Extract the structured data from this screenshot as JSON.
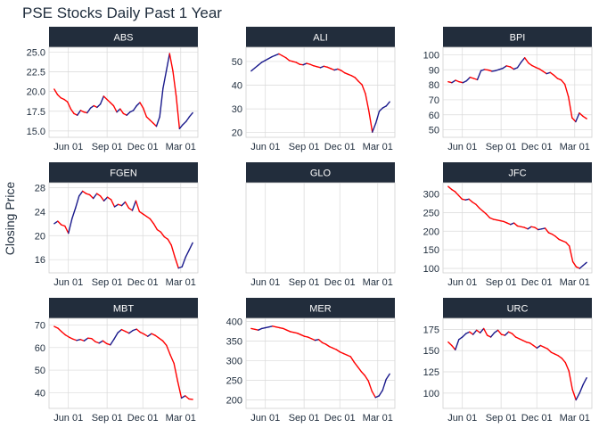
{
  "chart_data": {
    "type": "line",
    "title": "PSE Stocks Daily Past 1 Year",
    "xlabel": "",
    "ylabel": "Closing Price",
    "x_tick_labels": [
      "Jun 01",
      "Sep 01",
      "Dec 01",
      "Mar 01"
    ],
    "x_range_months": [
      "Apr 2019",
      "Apr 2020"
    ],
    "colors": {
      "up": "#1a1a8c",
      "down": "#ff0000",
      "strip": "#222d3c",
      "grid": "#d9d9d9"
    },
    "panels": [
      {
        "name": "ABS",
        "ylim": [
          14.2,
          25.6
        ],
        "yticks": [
          "25.0",
          "22.5",
          "20.0",
          "17.5",
          "15.0"
        ],
        "ytick_values": [
          25.0,
          22.5,
          20.0,
          17.5,
          15.0
        ],
        "values": [
          20.3,
          19.6,
          19.2,
          19.0,
          18.7,
          17.8,
          17.2,
          17.0,
          17.6,
          17.4,
          17.3,
          17.9,
          18.2,
          18.0,
          18.4,
          19.4,
          19.0,
          18.6,
          18.2,
          17.4,
          17.8,
          17.2,
          17.0,
          17.4,
          17.6,
          18.2,
          18.6,
          17.9,
          16.8,
          16.4,
          16.0,
          15.6,
          16.8,
          20.4,
          22.6,
          24.8,
          22.6,
          19.4,
          15.3,
          15.8,
          16.2,
          16.8,
          17.3
        ]
      },
      {
        "name": "ALI",
        "ylim": [
          18,
          56
        ],
        "yticks": [
          "50",
          "40",
          "30",
          "20"
        ],
        "ytick_values": [
          50,
          40,
          30,
          20
        ],
        "values": [
          46.0,
          47.2,
          48.4,
          49.6,
          50.4,
          51.2,
          52.0,
          52.6,
          53.2,
          52.4,
          51.6,
          50.4,
          50.0,
          49.6,
          48.8,
          48.6,
          49.2,
          48.8,
          48.2,
          47.8,
          47.4,
          48.0,
          47.6,
          47.0,
          46.4,
          46.8,
          46.2,
          45.2,
          44.6,
          44.0,
          43.2,
          41.6,
          40.2,
          36.4,
          29.0,
          20.2,
          24.0,
          29.0,
          30.4,
          31.2,
          33.0
        ]
      },
      {
        "name": "BPI",
        "ylim": [
          45,
          105
        ],
        "yticks": [
          "100",
          "90",
          "80",
          "70",
          "60",
          "50"
        ],
        "ytick_values": [
          100,
          90,
          80,
          70,
          60,
          50
        ],
        "values": [
          82.0,
          81.4,
          83.0,
          82.0,
          81.4,
          82.6,
          85.0,
          84.2,
          83.4,
          89.4,
          90.2,
          89.8,
          89.0,
          89.4,
          90.2,
          91.0,
          92.6,
          92.0,
          90.4,
          91.4,
          95.0,
          98.0,
          94.6,
          92.8,
          91.6,
          90.6,
          89.0,
          87.4,
          88.2,
          86.4,
          84.2,
          83.2,
          80.4,
          72.0,
          58.0,
          55.4,
          61.2,
          59.0,
          57.4
        ]
      },
      {
        "name": "FGEN",
        "ylim": [
          13.8,
          28.8
        ],
        "yticks": [
          "28",
          "24",
          "20",
          "16"
        ],
        "ytick_values": [
          28,
          24,
          20,
          16
        ],
        "values": [
          22.0,
          22.4,
          21.8,
          21.6,
          20.4,
          22.8,
          24.6,
          26.6,
          27.4,
          27.0,
          26.8,
          26.2,
          27.0,
          26.6,
          25.8,
          26.4,
          26.0,
          24.8,
          25.2,
          25.0,
          25.6,
          24.6,
          24.2,
          25.8,
          24.0,
          23.6,
          23.2,
          22.8,
          22.0,
          21.0,
          20.6,
          19.8,
          19.4,
          18.4,
          16.4,
          14.6,
          14.8,
          16.4,
          17.6,
          18.8
        ]
      },
      {
        "name": "GLO",
        "ylim": [
          0,
          1
        ],
        "yticks": [],
        "ytick_values": [],
        "values": []
      },
      {
        "name": "JFC",
        "ylim": [
          88,
          330
        ],
        "yticks": [
          "300",
          "250",
          "200",
          "150",
          "100"
        ],
        "ytick_values": [
          300,
          250,
          200,
          150,
          100
        ],
        "values": [
          320,
          312,
          306,
          296,
          286,
          284,
          286,
          278,
          272,
          262,
          254,
          246,
          236,
          232,
          230,
          228,
          226,
          222,
          218,
          222,
          214,
          212,
          210,
          206,
          212,
          210,
          204,
          206,
          208,
          196,
          192,
          186,
          178,
          174,
          170,
          160,
          118,
          104,
          100,
          108,
          116
        ]
      },
      {
        "name": "MBT",
        "ylim": [
          33,
          73
        ],
        "yticks": [
          "70",
          "60",
          "50",
          "40"
        ],
        "ytick_values": [
          70,
          60,
          50,
          40
        ],
        "values": [
          69.4,
          68.6,
          67.0,
          65.6,
          64.6,
          63.8,
          63.2,
          63.6,
          63.0,
          64.2,
          64.0,
          62.6,
          62.0,
          63.0,
          61.8,
          61.2,
          63.8,
          66.6,
          68.0,
          67.2,
          66.4,
          67.6,
          68.2,
          66.8,
          66.0,
          65.0,
          66.2,
          65.4,
          64.2,
          63.0,
          61.0,
          56.8,
          53.0,
          45.0,
          37.6,
          38.6,
          37.2,
          37.0
        ]
      },
      {
        "name": "MER",
        "ylim": [
          178,
          408
        ],
        "yticks": [
          "400",
          "350",
          "300",
          "250",
          "200"
        ],
        "ytick_values": [
          400,
          350,
          300,
          250,
          200
        ],
        "values": [
          382,
          380,
          378,
          382,
          384,
          386,
          388,
          386,
          384,
          382,
          378,
          374,
          372,
          370,
          366,
          362,
          360,
          356,
          352,
          354,
          346,
          342,
          336,
          332,
          328,
          322,
          318,
          314,
          310,
          296,
          284,
          272,
          262,
          248,
          222,
          206,
          210,
          224,
          252,
          266
        ]
      },
      {
        "name": "URC",
        "ylim": [
          82,
          188
        ],
        "yticks": [
          "175",
          "150",
          "125",
          "100"
        ],
        "ytick_values": [
          175,
          150,
          125,
          100
        ],
        "values": [
          160,
          156,
          151,
          163,
          166,
          170,
          172,
          169,
          174,
          171,
          176,
          168,
          166,
          171,
          174,
          169,
          168,
          172,
          170,
          166,
          164,
          162,
          160,
          159,
          156,
          153,
          156,
          154,
          152,
          148,
          146,
          144,
          141,
          136,
          126,
          104,
          92,
          100,
          110,
          118
        ]
      }
    ]
  }
}
